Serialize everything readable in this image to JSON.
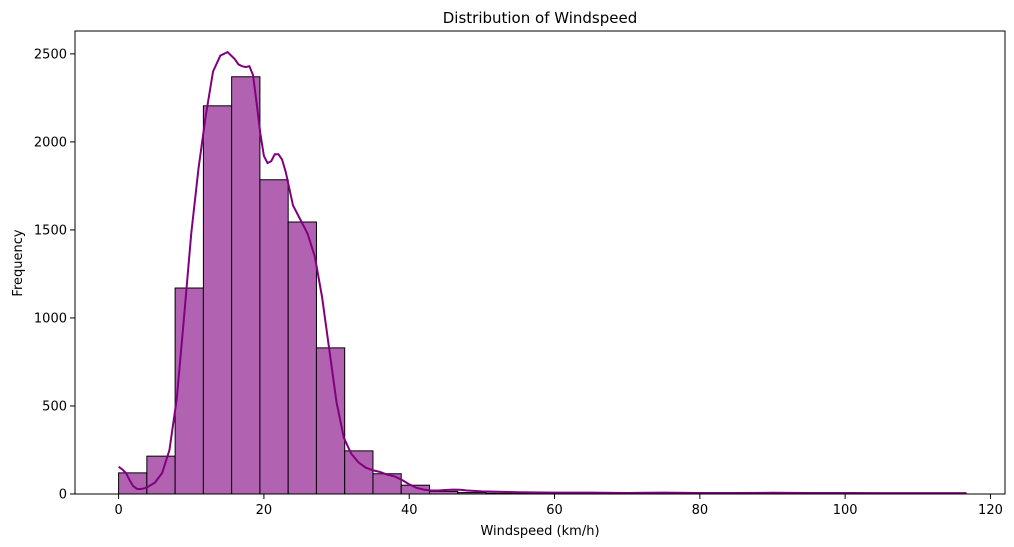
{
  "chart_data": {
    "type": "bar",
    "title": "Distribution of Windspeed",
    "xlabel": "Windspeed (km/h)",
    "ylabel": "Frequency",
    "xlim": [
      -6,
      122
    ],
    "ylim": [
      0,
      2630
    ],
    "xticks": [
      0,
      20,
      40,
      60,
      80,
      100,
      120
    ],
    "yticks": [
      0,
      500,
      1000,
      1500,
      2000,
      2500
    ],
    "bar_color": "#b163b1",
    "bar_edge_color": "#000000",
    "kde_color": "#800080",
    "bin_edges": [
      0,
      3.89,
      7.78,
      11.67,
      15.56,
      19.45,
      23.34,
      27.23,
      31.12,
      35.01,
      38.9,
      42.79,
      46.68,
      50.57,
      54.46,
      58.35,
      62.24,
      66.13,
      70.02,
      73.91,
      77.8,
      81.69,
      85.58,
      89.47,
      93.36,
      97.25,
      101.14,
      105.03,
      108.92,
      112.81,
      116.7
    ],
    "counts": [
      120,
      215,
      1170,
      2205,
      2370,
      1785,
      1545,
      830,
      245,
      115,
      50,
      15,
      8,
      4,
      3,
      2,
      2,
      2,
      1,
      2,
      1,
      1,
      1,
      1,
      1,
      1,
      1,
      1,
      1,
      1
    ],
    "kde": {
      "x": [
        0,
        0.5,
        1,
        1.5,
        2,
        2.5,
        3,
        3.5,
        4,
        5,
        6,
        7,
        8,
        9,
        10,
        11,
        12,
        13,
        14,
        15,
        15.5,
        16,
        16.5,
        17,
        17.5,
        18,
        18.5,
        19,
        19.5,
        20,
        20.5,
        21,
        21.5,
        22,
        22.5,
        23,
        24,
        25,
        26,
        27,
        28,
        29,
        30,
        31,
        32,
        33,
        34,
        35,
        36,
        37,
        38,
        39,
        40,
        41,
        42,
        43,
        44,
        45,
        46,
        47,
        48,
        50,
        55,
        60,
        65,
        70,
        75,
        80,
        85,
        90,
        95,
        100,
        105,
        110,
        116.7
      ],
      "y": [
        155,
        140,
        120,
        80,
        45,
        30,
        28,
        32,
        40,
        65,
        120,
        250,
        540,
        1000,
        1480,
        1850,
        2150,
        2400,
        2490,
        2510,
        2490,
        2470,
        2440,
        2430,
        2425,
        2430,
        2380,
        2220,
        2050,
        1920,
        1880,
        1890,
        1930,
        1930,
        1900,
        1830,
        1640,
        1560,
        1480,
        1350,
        1120,
        820,
        520,
        320,
        230,
        180,
        150,
        135,
        125,
        110,
        100,
        80,
        55,
        35,
        25,
        20,
        20,
        23,
        25,
        24,
        20,
        15,
        10,
        8,
        8,
        6,
        8,
        6,
        6,
        7,
        6,
        6,
        5,
        5,
        5
      ]
    }
  }
}
